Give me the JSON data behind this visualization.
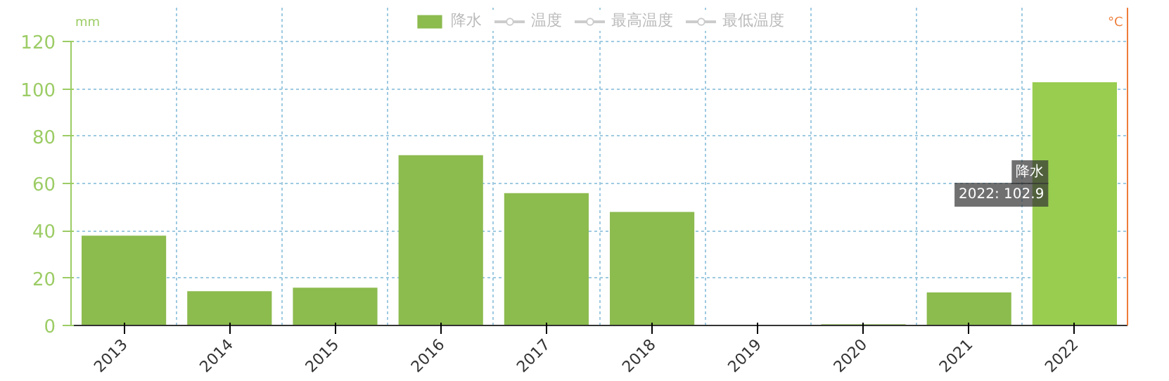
{
  "chart_data": {
    "type": "bar",
    "categories": [
      "2013",
      "2014",
      "2015",
      "2016",
      "2017",
      "2018",
      "2019",
      "2020",
      "2021",
      "2022"
    ],
    "series": [
      {
        "name": "降水",
        "colors": [
          "#8cbb4e",
          "#8cbb4e",
          "#8cbb4e",
          "#8cbb4e",
          "#8cbb4e",
          "#8cbb4e",
          "#8cbb4e",
          "#8cbb4e",
          "#8cbb4e",
          "#98cd50"
        ],
        "values": [
          38,
          14.5,
          16,
          72,
          56,
          48,
          0,
          0.5,
          14,
          102.9
        ]
      },
      {
        "name": "温度",
        "type": "line",
        "color": "#cccccc",
        "values": [
          null,
          null,
          null,
          null,
          null,
          null,
          null,
          null,
          null,
          null
        ]
      },
      {
        "name": "最高温度",
        "type": "line",
        "color": "#cccccc",
        "values": [
          null,
          null,
          null,
          null,
          null,
          null,
          null,
          null,
          null,
          null
        ]
      },
      {
        "name": "最低温度",
        "type": "line",
        "color": "#cccccc",
        "values": [
          null,
          null,
          null,
          null,
          null,
          null,
          null,
          null,
          null,
          null
        ]
      }
    ],
    "ylabel": "mm",
    "y2label": "°C",
    "ylim": [
      0,
      120
    ],
    "yticks": [
      0,
      20,
      40,
      60,
      80,
      100,
      120
    ],
    "grid": true,
    "legend": "top",
    "marker": "circle",
    "annotations": [
      "降水",
      "2022: 102.9"
    ]
  }
}
